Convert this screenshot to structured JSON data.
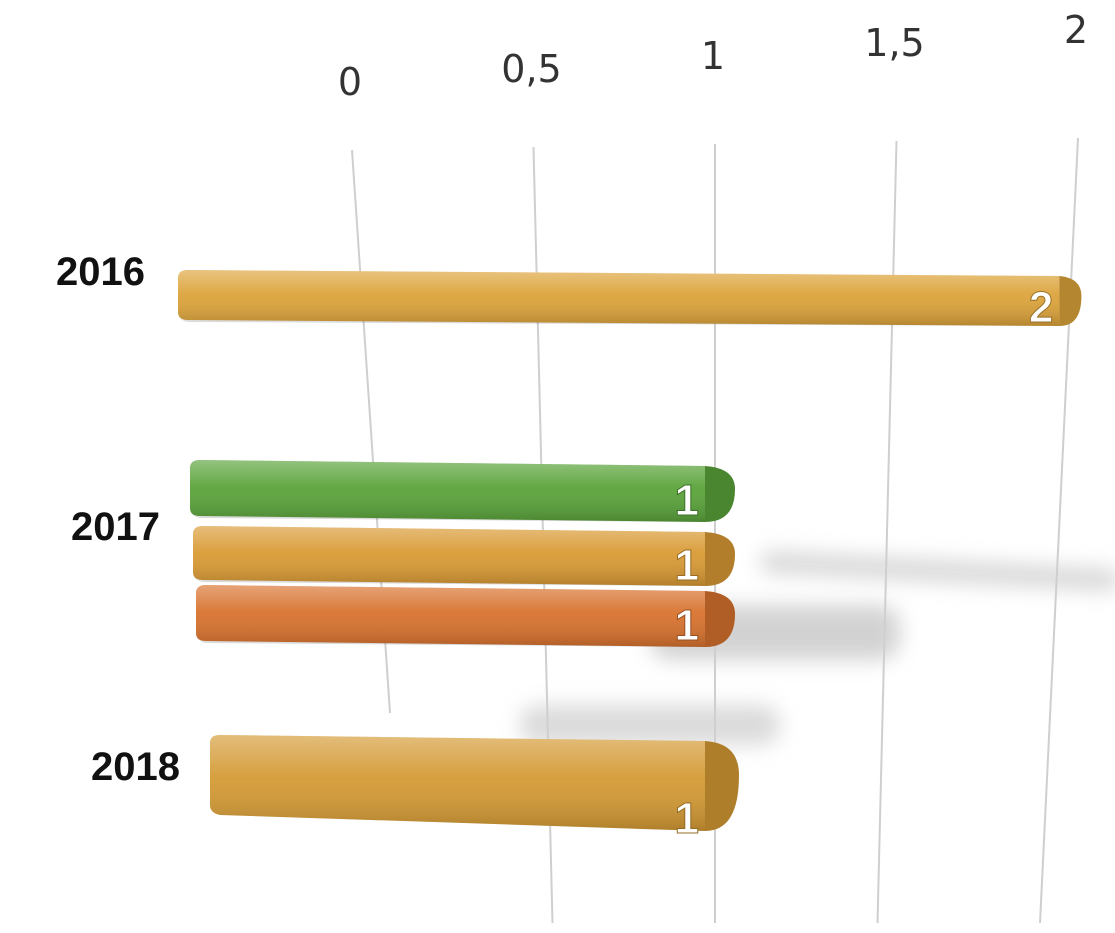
{
  "chart_data": {
    "type": "bar",
    "orientation": "horizontal",
    "style": "3d-perspective",
    "x_ticks": [
      "0",
      "0,5",
      "1",
      "1,5",
      "2"
    ],
    "xlim": [
      0,
      2
    ],
    "grid": true,
    "categories": [
      "2016",
      "2017",
      "2018"
    ],
    "bars": [
      {
        "category": "2016",
        "value": 2,
        "label": "2",
        "color": "#dca33a"
      },
      {
        "category": "2017",
        "value": 1,
        "label": "1",
        "color": "#5aa33a"
      },
      {
        "category": "2017",
        "value": 1,
        "label": "1",
        "color": "#d99a34"
      },
      {
        "category": "2017",
        "value": 1,
        "label": "1",
        "color": "#d8722e"
      },
      {
        "category": "2018",
        "value": 1,
        "label": "1",
        "color": "#d49a34"
      }
    ]
  }
}
